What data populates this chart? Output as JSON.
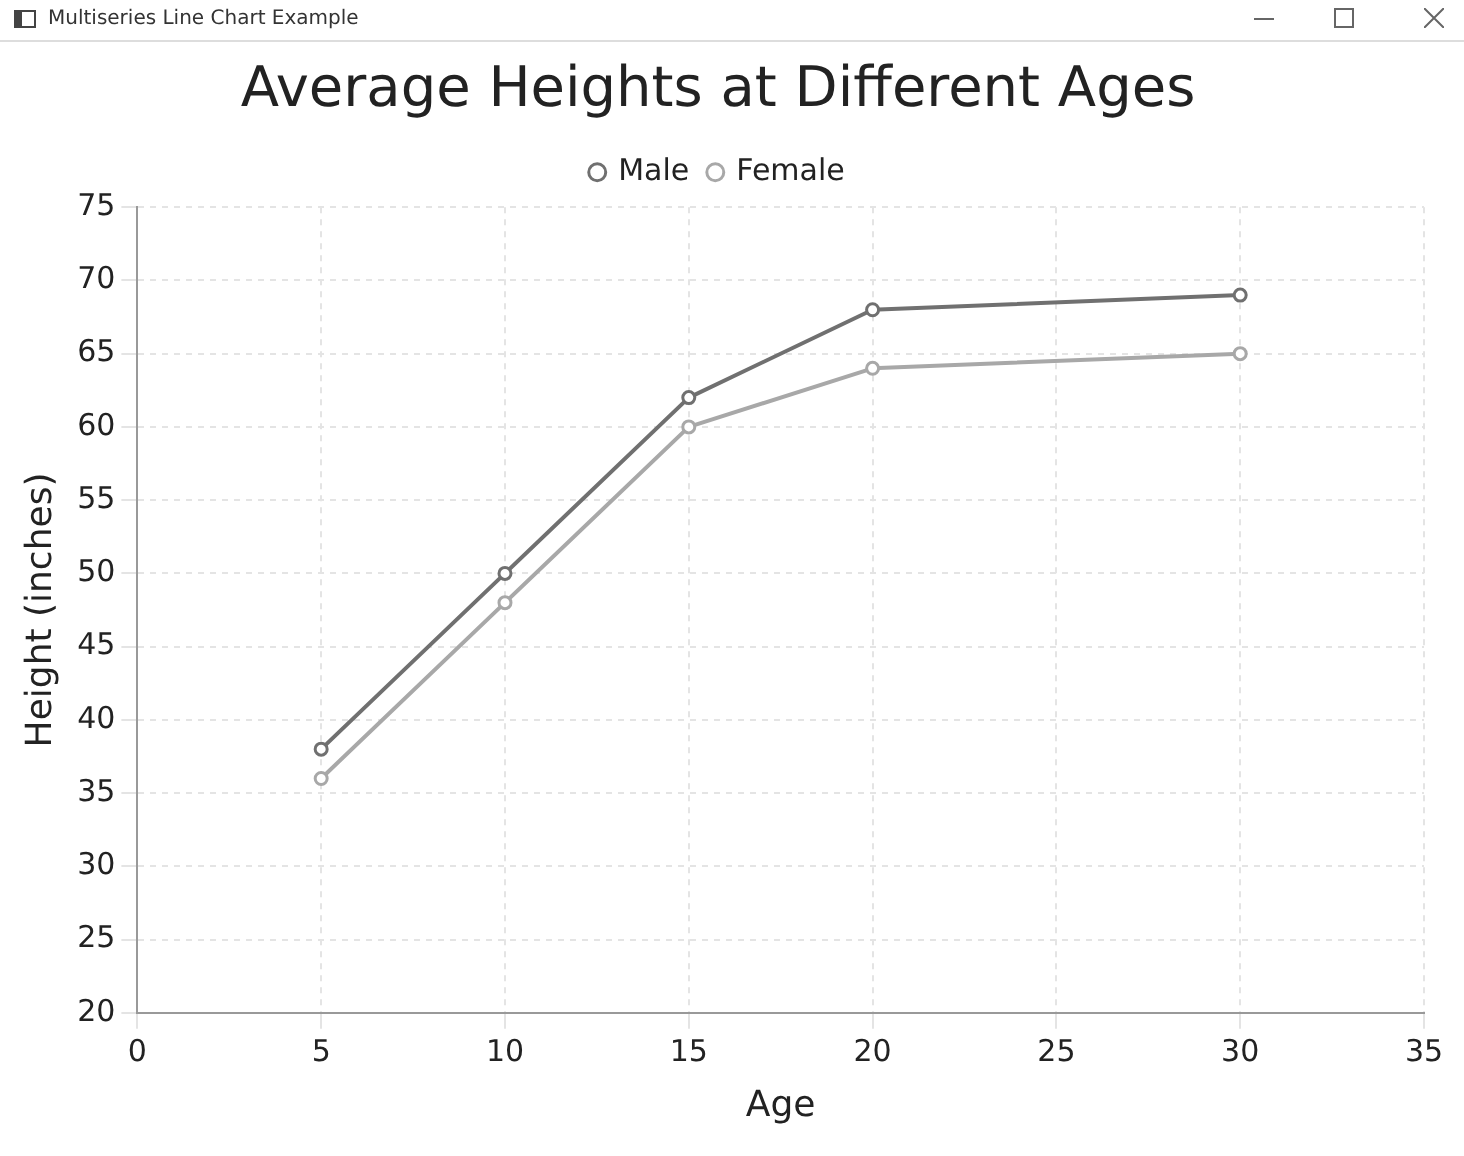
{
  "chart_data": {
    "type": "line",
    "title": "Average Heights at Different Ages",
    "xlabel": "Age",
    "ylabel": "Height (inches)",
    "x": [
      5,
      10,
      15,
      20,
      30
    ],
    "series": [
      {
        "name": "Male",
        "color": "#707070",
        "values": [
          38,
          50,
          62,
          68,
          69
        ]
      },
      {
        "name": "Female",
        "color": "#a8a8a8",
        "values": [
          36,
          48,
          60,
          64,
          65
        ]
      }
    ],
    "xlim": [
      0,
      35
    ],
    "xticks": [
      0,
      5,
      10,
      15,
      20,
      25,
      30,
      35
    ],
    "ylim": [
      20,
      75
    ],
    "yticks": [
      20,
      25,
      30,
      35,
      40,
      45,
      50,
      55,
      60,
      65,
      70,
      75
    ],
    "grid": true,
    "legend": "top",
    "marker": "circle",
    "line_style": "solid",
    "annotations": [
      "Multiseries Line Chart Example"
    ]
  }
}
